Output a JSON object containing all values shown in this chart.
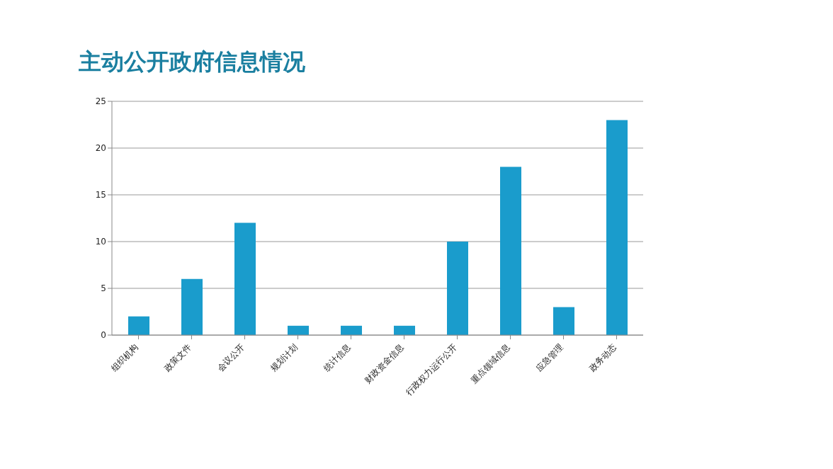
{
  "chart_data": {
    "type": "bar",
    "title": "主动公开政府信息情况",
    "categories": [
      "组织机构",
      "政策文件",
      "会议公开",
      "规划计划",
      "统计信息",
      "财政资金信息",
      "行政权力运行公开",
      "重点领域信息",
      "应急管理",
      "政务动态"
    ],
    "values": [
      2,
      6,
      12,
      1,
      1,
      1,
      10,
      18,
      3,
      23
    ],
    "color": "#1a9ccc",
    "ylim": [
      0,
      25
    ],
    "yticks": [
      0,
      5,
      10,
      15,
      20,
      25
    ],
    "grid": "y"
  }
}
